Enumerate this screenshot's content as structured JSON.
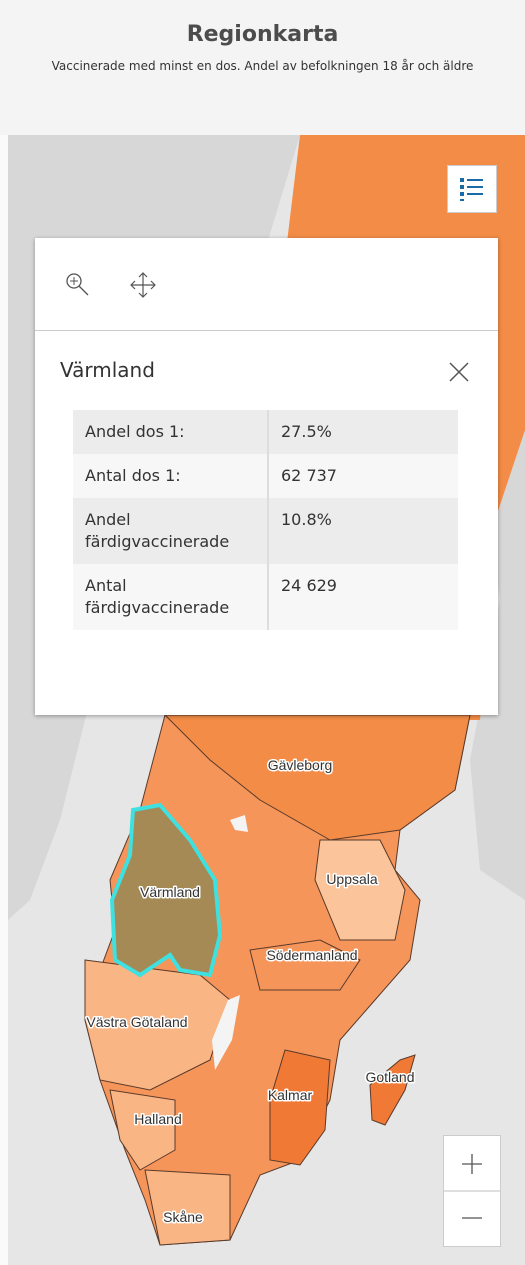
{
  "header": {
    "title": "Regionkarta",
    "subtitle": "Vaccinerade med minst en dos. Andel av befolkningen 18 år och äldre"
  },
  "popup": {
    "title": "Värmland",
    "rows": [
      [
        "Andel dos 1:",
        "27.5%"
      ],
      [
        "Antal dos 1:",
        "62 737"
      ],
      [
        "Andel färdigvaccinerade",
        "10.8%"
      ],
      [
        "Antal färdigvaccinerade",
        "24 629"
      ]
    ]
  },
  "map": {
    "labels": [
      "Gävleborg",
      "Uppsala",
      "Värmland",
      "Södermanland",
      "Västra Götaland",
      "Gotland",
      "Kalmar",
      "Halland",
      "Skåne"
    ]
  }
}
